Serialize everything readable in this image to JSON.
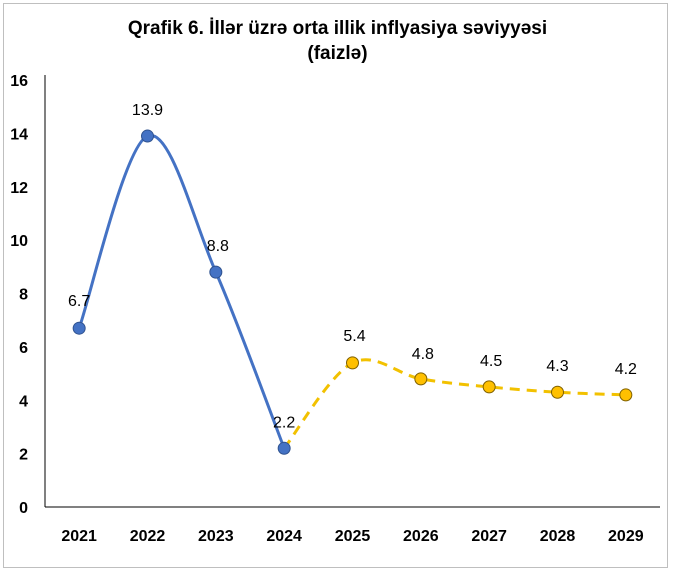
{
  "chart_data": {
    "type": "line",
    "title_line1": "Qrafik 6. İllər üzrə orta illik inflyasiya səviyyəsi",
    "title_line2": "(faizlə)",
    "xlabel": "",
    "ylabel": "",
    "categories": [
      "2021",
      "2022",
      "2023",
      "2024",
      "2025",
      "2026",
      "2027",
      "2028",
      "2029"
    ],
    "ylim": [
      0,
      16
    ],
    "yticks": [
      "0",
      "2",
      "4",
      "6",
      "8",
      "10",
      "12",
      "14",
      "16"
    ],
    "grid": false,
    "series": [
      {
        "style": "solid",
        "color": "#4472C4",
        "marker_color": "#4472C4",
        "x": [
          "2021",
          "2022",
          "2023",
          "2024"
        ],
        "values": [
          6.7,
          13.9,
          8.8,
          2.2
        ],
        "labels": [
          "6.7",
          "13.9",
          "8.8",
          "2.2"
        ]
      },
      {
        "style": "dashed",
        "color": "#F2C100",
        "marker_color": "#FFC000",
        "x": [
          "2025",
          "2026",
          "2027",
          "2028",
          "2029"
        ],
        "values": [
          5.4,
          4.8,
          4.5,
          4.3,
          4.2
        ],
        "labels": [
          "5.4",
          "4.8",
          "4.5",
          "4.3",
          "4.2"
        ]
      }
    ]
  }
}
